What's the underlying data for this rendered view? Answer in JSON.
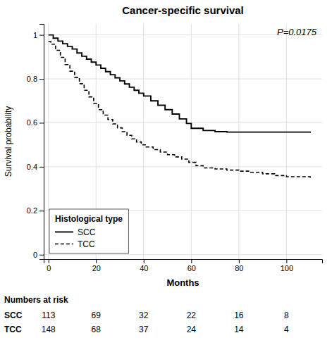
{
  "chart_data": {
    "type": "step",
    "title": "Cancer-specific survival",
    "x_label": "Months",
    "y_label": "Survival probability",
    "annotations": [
      "P=0.0175"
    ],
    "xlim": [
      -2,
      115
    ],
    "ylim": [
      -0.02,
      1.05
    ],
    "xticks": [
      0,
      20,
      40,
      60,
      80,
      100
    ],
    "yticks": [
      0,
      0.2,
      0.4,
      0.6,
      0.8,
      1
    ],
    "grid": true,
    "legend": "lower left",
    "legend_title": "Histological type",
    "risk_label": "Numbers at risk",
    "risk_times": [
      0,
      20,
      40,
      60,
      80,
      100
    ],
    "series": [
      {
        "name": "SCC",
        "color": "black",
        "line_style": "solid",
        "x": [
          0,
          2,
          4,
          6,
          8,
          10,
          12,
          14,
          16,
          18,
          20,
          22,
          24,
          26,
          28,
          30,
          32,
          34,
          36,
          38,
          40,
          43,
          46,
          49,
          52,
          55,
          58,
          60,
          65,
          70,
          75,
          110
        ],
        "values": [
          1.0,
          0.985,
          0.972,
          0.96,
          0.948,
          0.936,
          0.918,
          0.903,
          0.89,
          0.876,
          0.863,
          0.848,
          0.833,
          0.819,
          0.805,
          0.791,
          0.777,
          0.762,
          0.748,
          0.735,
          0.722,
          0.7,
          0.68,
          0.66,
          0.64,
          0.618,
          0.597,
          0.575,
          0.565,
          0.56,
          0.558,
          0.555
        ],
        "at_risk": [
          113,
          69,
          32,
          22,
          16,
          8
        ]
      },
      {
        "name": "TCC",
        "color": "black",
        "line_style": "dashed",
        "x": [
          0,
          1,
          3,
          5,
          7,
          9,
          11,
          13,
          15,
          17,
          19,
          21,
          23,
          25,
          27,
          29,
          31,
          33,
          35,
          37,
          39,
          41,
          44,
          47,
          50,
          53,
          56,
          59,
          62,
          65,
          70,
          75,
          80,
          85,
          90,
          95,
          100,
          110
        ],
        "values": [
          0.97,
          0.958,
          0.93,
          0.898,
          0.865,
          0.835,
          0.807,
          0.778,
          0.748,
          0.718,
          0.688,
          0.66,
          0.635,
          0.615,
          0.595,
          0.577,
          0.56,
          0.543,
          0.527,
          0.513,
          0.5,
          0.49,
          0.478,
          0.467,
          0.455,
          0.445,
          0.435,
          0.42,
          0.405,
          0.395,
          0.39,
          0.385,
          0.38,
          0.375,
          0.368,
          0.36,
          0.355,
          0.35
        ],
        "at_risk": [
          148,
          68,
          37,
          24,
          14,
          4
        ]
      }
    ]
  }
}
